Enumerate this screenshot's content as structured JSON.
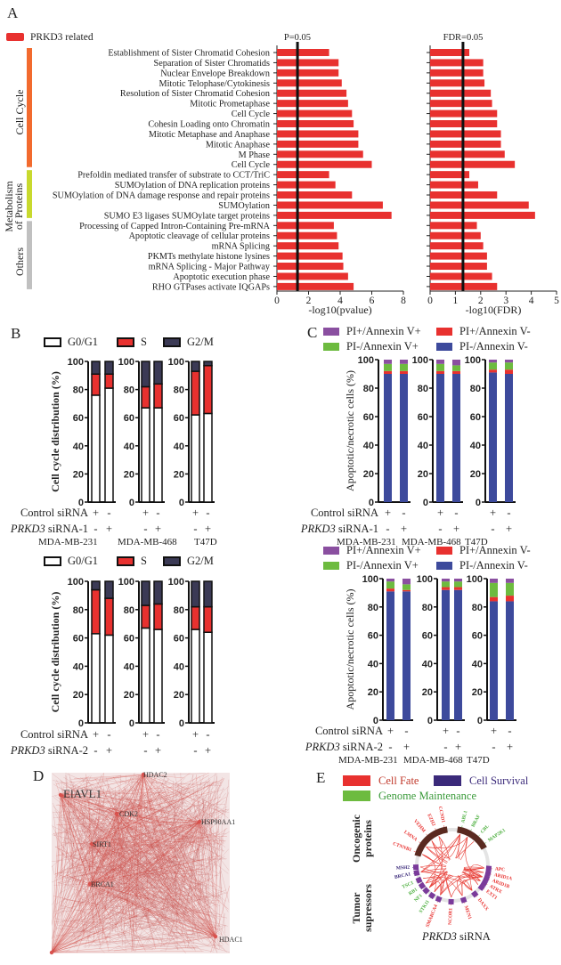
{
  "colors": {
    "bar_red": "#e8312f",
    "cell_cycle": "#f26a2e",
    "metabolism": "#c8d92e",
    "others": "#c0c0c0",
    "g0g1": "#ffffff",
    "s": "#e8312f",
    "g2m": "#3b3a55",
    "pi_pos_ann_pos": "#8a4fa0",
    "pi_pos_ann_neg": "#e8312f",
    "pi_neg_ann_pos": "#6dbb3f",
    "pi_neg_ann_neg": "#3d4a9c",
    "cell_fate": "#e8312f",
    "cell_survival": "#3b2a7a",
    "genome_maintenance": "#4caf3e",
    "oncogenic_arc": "#5a2a20",
    "network": "#c0605e"
  },
  "panel_labels": {
    "a": "A",
    "b": "B",
    "c": "C",
    "d": "D",
    "e": "E"
  },
  "chart_data": [
    {
      "type": "bar",
      "orientation": "horizontal",
      "legend": "PRKD3 related",
      "categories": [
        "Establishment of Sister Chromatid Cohesion",
        "Separation of Sister Chromatids",
        "Nuclear Envelope Breakdown",
        "Mitotic Telophase/Cytokinesis",
        "Resolution of Sister Chromatid Cohesion",
        "Mitotic Prometaphase",
        "Cell Cycle",
        "Cohesin Loading onto Chromatin",
        "Mitotic Metaphase and Anaphase",
        "Mitotic Anaphase",
        "M Phase",
        "Cell Cycle",
        "Prefoldin mediated transfer of substrate  to CCT/TriC",
        "SUMOylation of DNA replication proteins",
        "SUMOylation of DNA damage response and repair proteins",
        "SUMOylation",
        "SUMO E3 ligases SUMOylate target proteins",
        "Processing of Capped Intron-Containing Pre-mRNA",
        "Apoptotic cleavage of cellular proteins",
        "mRNA Splicing",
        "PKMTs methylate histone lysines",
        "mRNA Splicing - Major Pathway",
        "Apoptotic execution  phase",
        "RHO GTPases activate IQGAPs"
      ],
      "groups": [
        {
          "label": "Cell Cycle",
          "count": 12
        },
        {
          "label": "Metabolism of Proteins",
          "line1": "Metabolism",
          "line2": "of Proteins",
          "count": 5
        },
        {
          "label": "Others",
          "count": 7
        }
      ],
      "values": [
        3.3,
        3.9,
        3.9,
        4.1,
        4.4,
        4.5,
        4.75,
        4.85,
        5.15,
        5.15,
        5.45,
        6.0,
        3.3,
        3.7,
        4.75,
        6.7,
        7.25,
        3.6,
        3.8,
        3.9,
        4.15,
        4.2,
        4.5,
        4.85
      ],
      "xlabel": "-log10(pvalue)",
      "xlim": [
        0,
        8
      ],
      "xticks": [
        "0",
        "2",
        "4",
        "6",
        "8"
      ],
      "threshold": {
        "label": "P=0.05",
        "value": 1.3
      }
    },
    {
      "type": "bar",
      "orientation": "horizontal",
      "values": [
        1.55,
        2.1,
        2.1,
        2.15,
        2.4,
        2.45,
        2.65,
        2.65,
        2.8,
        2.8,
        2.95,
        3.35,
        1.55,
        1.9,
        2.65,
        3.9,
        4.15,
        1.85,
        2.0,
        2.1,
        2.25,
        2.25,
        2.45,
        2.65
      ],
      "xlabel": "-log10(FDR)",
      "xlim": [
        0,
        5
      ],
      "xticks": [
        "0",
        "1",
        "2",
        "3",
        "4",
        "5"
      ],
      "threshold": {
        "label": "FDR=0.05",
        "value": 1.3
      }
    },
    {
      "type": "bar",
      "stacked": true,
      "legend": [
        "G0/G1",
        "S",
        "G2/M"
      ],
      "ylabel": "Cell cycle distribution (%)",
      "ylim": [
        0,
        100
      ],
      "yticks": [
        "0",
        "20",
        "40",
        "60",
        "80",
        "100"
      ],
      "cell_lines": [
        "MDA-MB-231",
        "MDA-MB-468",
        "T47D"
      ],
      "conditions": [
        {
          "label": "Control siRNA",
          "signs": [
            "+",
            "-",
            "+",
            "-",
            "+",
            "-"
          ]
        },
        {
          "gene": "PRKD3",
          "label": " siRNA-1",
          "signs": [
            "-",
            "+",
            "-",
            "+",
            "-",
            "+"
          ]
        }
      ],
      "bars": [
        [
          76,
          15,
          9
        ],
        [
          81,
          10,
          9
        ],
        [
          67,
          15,
          18
        ],
        [
          67,
          17,
          16
        ],
        [
          62,
          31,
          7
        ],
        [
          63,
          34,
          3
        ]
      ]
    },
    {
      "type": "bar",
      "stacked": true,
      "legend": [
        "G0/G1",
        "S",
        "G2/M"
      ],
      "ylabel": "Cell cycle distribution (%)",
      "ylim": [
        0,
        100
      ],
      "yticks": [
        "0",
        "20",
        "40",
        "60",
        "80",
        "100"
      ],
      "conditions": [
        {
          "label": "Control siRNA",
          "signs": [
            "+",
            "-",
            "+",
            "-",
            "+",
            "-"
          ]
        },
        {
          "gene": "PRKD3",
          "label": " siRNA-2",
          "signs": [
            "-",
            "+",
            "-",
            "+",
            "-",
            "+"
          ]
        }
      ],
      "bars": [
        [
          63,
          31,
          6
        ],
        [
          62,
          26,
          12
        ],
        [
          67,
          16,
          17
        ],
        [
          66,
          18,
          16
        ],
        [
          66,
          16,
          18
        ],
        [
          64,
          18,
          18
        ]
      ]
    },
    {
      "type": "bar",
      "stacked": true,
      "legend": [
        "PI+/Annexin V+",
        "PI+/Annexin V-",
        "PI-/Annexin V+",
        "PI-/Annexin V-"
      ],
      "ylabel": "Apoptotic/necrotic cells  (%)",
      "ylim": [
        0,
        100
      ],
      "yticks": [
        "0",
        "20",
        "40",
        "60",
        "80",
        "100"
      ],
      "cell_lines": [
        "MDA-MB-231",
        "MDA-MB-468",
        "T47D"
      ],
      "conditions": [
        {
          "label": "Control siRNA",
          "signs": [
            "+",
            "-",
            "+",
            "-",
            "+",
            "-"
          ]
        },
        {
          "gene": "PRKD3",
          "label": " siRNA-1",
          "signs": [
            "-",
            "+",
            "-",
            "+",
            "-",
            "+"
          ]
        }
      ],
      "stack_order": [
        "PI-/Annexin V-",
        "PI+/Annexin V-",
        "PI-/Annexin V+",
        "PI+/Annexin V+"
      ],
      "bars": [
        [
          90,
          2,
          5,
          3
        ],
        [
          90,
          2,
          5,
          3
        ],
        [
          90,
          2,
          5,
          3
        ],
        [
          90,
          2,
          4,
          4
        ],
        [
          91,
          2,
          5,
          2
        ],
        [
          90,
          3,
          5,
          2
        ]
      ]
    },
    {
      "type": "bar",
      "stacked": true,
      "legend": [
        "PI+/Annexin V+",
        "PI+/Annexin V-",
        "PI-/Annexin V+",
        "PI-/Annexin V-"
      ],
      "ylabel": "Apoptotic/necrotic cells  (%)",
      "ylim": [
        0,
        100
      ],
      "yticks": [
        "0",
        "20",
        "40",
        "60",
        "80",
        "100"
      ],
      "cell_lines": [
        "MDA-MB-231",
        "MDA-MB-468",
        "T47D"
      ],
      "conditions": [
        {
          "label": "Control siRNA",
          "signs": [
            "+",
            "-",
            "+",
            "-",
            "+",
            "-"
          ]
        },
        {
          "gene": "PRKD3",
          "label": " siRNA-2",
          "signs": [
            "-",
            "+",
            "-",
            "+",
            "-",
            "+"
          ]
        }
      ],
      "stack_order": [
        "PI-/Annexin V-",
        "PI+/Annexin V-",
        "PI-/Annexin V+",
        "PI+/Annexin V+"
      ],
      "bars": [
        [
          91,
          2,
          5,
          2
        ],
        [
          91,
          1,
          4,
          4
        ],
        [
          92,
          2,
          4,
          2
        ],
        [
          92,
          2,
          4,
          2
        ],
        [
          84,
          3,
          10,
          3
        ],
        [
          84,
          4,
          9,
          3
        ]
      ]
    }
  ],
  "network": {
    "hubs": [
      "HDAC2",
      "ElAVL1",
      "CDK2",
      "HSP90AA1",
      "SIRT1",
      "BRCA1",
      "HDAC1"
    ]
  },
  "circos": {
    "legend": [
      "Cell Fate",
      "Cell Survival",
      "Genome Maintenance"
    ],
    "side_labels": {
      "top": "Oncogenic proteins",
      "top1": "Oncogenic",
      "top2": "proteins",
      "bottom1": "Tumor",
      "bottom2": "supressors"
    },
    "caption_gene": "PRKD3",
    "caption_rest": " siRNA",
    "oncogenic": [
      {
        "name": "CTNNB1",
        "class": "fate"
      },
      {
        "name": "LMNA",
        "class": "fate"
      },
      {
        "name": "VEHM",
        "class": "fate"
      },
      {
        "name": "EZH2",
        "class": "fate"
      },
      {
        "name": "CCND1",
        "class": "fate"
      },
      {
        "name": "ABL1",
        "class": "genome"
      },
      {
        "name": "BRAF",
        "class": "genome"
      },
      {
        "name": "CBL",
        "class": "genome"
      },
      {
        "name": "MAP2K1",
        "class": "genome"
      }
    ],
    "tumor_suppressors": [
      {
        "name": "APC",
        "class": "fate"
      },
      {
        "name": "ARID1A",
        "class": "fate"
      },
      {
        "name": "ARID1B",
        "class": "fate"
      },
      {
        "name": "ATRX",
        "class": "fate"
      },
      {
        "name": "EXT1",
        "class": "fate"
      },
      {
        "name": "DAXX",
        "class": "fate"
      },
      {
        "name": "MEN1",
        "class": "fate"
      },
      {
        "name": "NCOR1",
        "class": "fate"
      },
      {
        "name": "SMARCA4",
        "class": "fate"
      },
      {
        "name": "STK11",
        "class": "genome"
      },
      {
        "name": "NF1",
        "class": "genome"
      },
      {
        "name": "RB1",
        "class": "genome"
      },
      {
        "name": "TSC1",
        "class": "genome"
      },
      {
        "name": "BRCA1",
        "class": "survival"
      },
      {
        "name": "MSH2",
        "class": "survival"
      }
    ]
  }
}
